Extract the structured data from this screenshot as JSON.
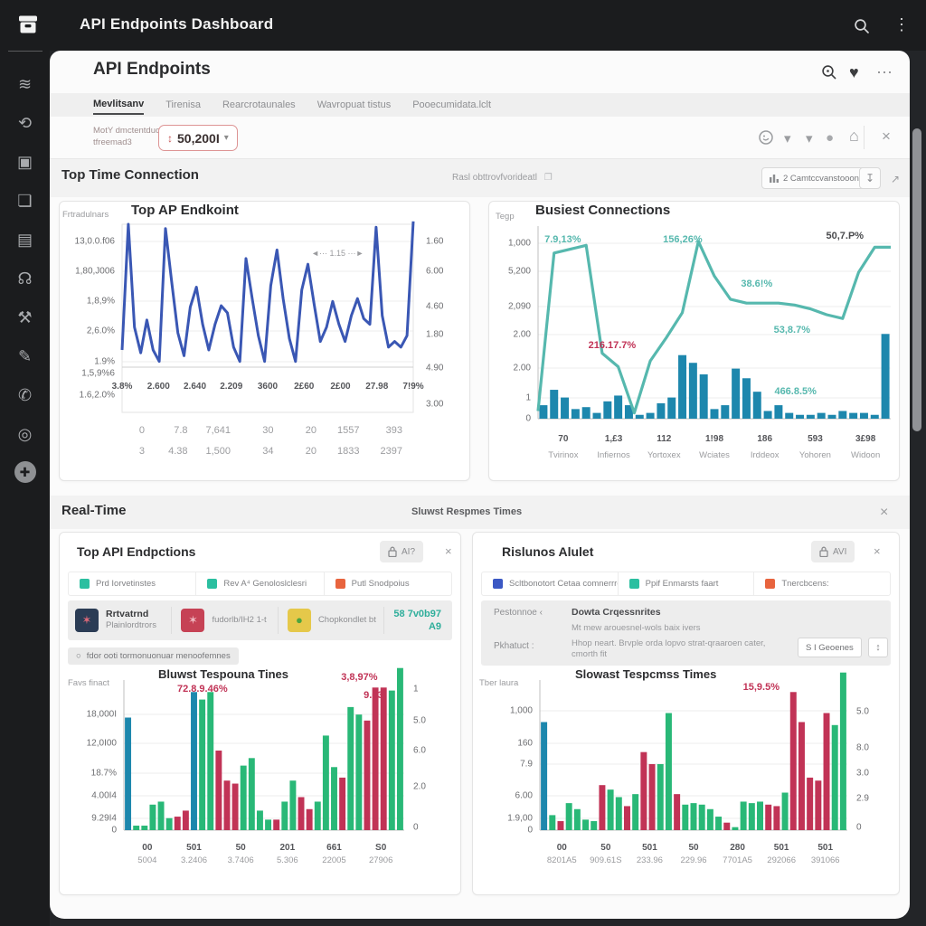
{
  "topbar": {
    "title": "API Endpoints Dashboard"
  },
  "sidebar": {
    "icons": [
      {
        "name": "wifi-icon",
        "glyph": "≋"
      },
      {
        "name": "chat-sync-icon",
        "glyph": "⟲"
      },
      {
        "name": "camera-icon",
        "glyph": "▣"
      },
      {
        "name": "layers-icon",
        "glyph": "❏"
      },
      {
        "name": "photo-icon",
        "glyph": "▤"
      },
      {
        "name": "headset-icon",
        "glyph": "☊"
      },
      {
        "name": "tools-icon",
        "glyph": "⚒"
      },
      {
        "name": "image-edit-icon",
        "glyph": "✎"
      },
      {
        "name": "phone-icon",
        "glyph": "✆"
      },
      {
        "name": "target-icon",
        "glyph": "◎"
      },
      {
        "name": "add-icon",
        "glyph": "✚"
      }
    ]
  },
  "icons": {
    "kebab": "⋮",
    "heart": "♥",
    "ellipsis": "⋯",
    "close": "×",
    "caret_down": "▾",
    "dot": "●",
    "home": "⌂",
    "updown": "↕",
    "download": "↧",
    "expand": "↗",
    "meta_box": "❐",
    "radio": "○",
    "stepper": "↕"
  },
  "card": {
    "title": "API Endpoints"
  },
  "tabs": [
    "Mevlitsanv",
    "Tirenisa",
    "Rearcrotaunales",
    "Wavropuat tistus",
    "Pooecumidata.lclt"
  ],
  "filter": {
    "label_line1": "MotY dmctentduoocs",
    "label_line2": "tfreemad3",
    "value": "50,200I"
  },
  "section1": {
    "title": "Top Time Connection",
    "meta": "Rasl obttrovfvorideatl",
    "button_label": "2 Camtccvanstooon"
  },
  "band2": {
    "title": "Real-Time",
    "center": "Sluwst Respmes Times"
  },
  "panel_bl": {
    "title": "Top API Endpctions",
    "badge": "AI?",
    "legend1": [
      {
        "color": "#2bbfa0",
        "label": "Prd Iorvetinstes"
      },
      {
        "color": "#2bbfa0",
        "label": "Rev A⁴ Genoloslclesri"
      },
      {
        "color": "#e8643e",
        "label": "Putl Snodpoius"
      }
    ],
    "legend2": [
      {
        "tile": "#2b3c55",
        "glyph": "✶",
        "glyph_color": "#e06a7a",
        "line1": "Rrtvatrnd",
        "line2": "Plainlordtrors"
      },
      {
        "tile": "#c64255",
        "glyph": "✶",
        "glyph_color": "#f0b9c1",
        "line1": "",
        "line2": "fudorlb/IH2 1-t"
      },
      {
        "tile": "#e5c84a",
        "glyph": "●",
        "glyph_color": "#4ca53e",
        "line1": "",
        "line2": "Chopkondlet bt"
      }
    ],
    "stat1": "58 7v0b97",
    "stat2": "A9",
    "radio_label": "fdor ooti tormonuonuar menoofemnes"
  },
  "panel_br": {
    "title": "Rislunos Alulet",
    "badge": "AVI",
    "legend1": [
      {
        "color": "#3b58c4",
        "label": "Scltbonotort Cetaa comnerrrdhs"
      },
      {
        "color": "#2bbfa0",
        "label": "Ppif Enmarsts faart"
      },
      {
        "color": "#e8643e",
        "label": "Tnercbcens:"
      }
    ],
    "row1_label": "Pestonnoe ‹",
    "row1_title": "Dowta Crqessnrites",
    "row1_sub": "Mt mew arouesnel-wols baix ivers",
    "row2_label": "Pkhatuct :",
    "row2_text": "Hhop neart. Brvple orda lopvo strat-qraaroen cater, cmorth fit",
    "button_label": "S I Geoenes"
  },
  "chart_data": [
    {
      "type": "line",
      "title": "Top AP Endkoint",
      "axis_label": "Frtradulnars",
      "line_color": "#3a57b4",
      "y_left": [
        "13,0.0.f06",
        "1,80,J006",
        "1,8,9%",
        "2,6.0%",
        "1.9%",
        "1,5,9%6",
        "1.6,2.0%"
      ],
      "y_right": [
        "1.60",
        "6.00",
        "4.60",
        "1.80",
        "4.90",
        "3.00"
      ],
      "x": [
        "3.8%",
        "2.600",
        "2.640",
        "2.209",
        "3600",
        "2£60",
        "2£00",
        "27.98",
        "7!9%"
      ],
      "values": [
        12,
        100,
        28,
        10,
        33,
        12,
        4,
        97,
        60,
        24,
        8,
        42,
        56,
        30,
        12,
        30,
        43,
        38,
        14,
        4,
        76,
        48,
        22,
        4,
        57,
        82,
        48,
        20,
        4,
        54,
        72,
        44,
        18,
        28,
        46,
        30,
        18,
        36,
        48,
        34,
        30,
        98,
        36,
        14,
        18,
        14,
        22,
        102
      ],
      "annotations": [
        {
          "text": "1.15",
          "color": "#9a9b9e",
          "x": 0.74,
          "y": 0.2,
          "style": "dashes"
        }
      ],
      "table": [
        [
          "0",
          "7.8",
          "7,641",
          "30",
          "20",
          "1557",
          "393"
        ],
        [
          "3",
          "4.38",
          "1,500",
          "34",
          "20",
          "1833",
          "2397"
        ]
      ]
    },
    {
      "type": "line-bar",
      "title": "Busiest Connections",
      "axis_label": "Tegp",
      "line_color": "#56b8ae",
      "bar_color": "#1d87ad",
      "y_left": [
        "1,000",
        "5,200",
        "2,090",
        "2.00",
        "2.00",
        "1",
        "0"
      ],
      "x_numbers": [
        "70",
        "1,£3",
        "112",
        "1!98",
        "186",
        "593",
        "3£98"
      ],
      "x_names": [
        "Tvirinox",
        "Infiernos",
        "Yortoxex",
        "Wciates",
        "Irddeox",
        "Yohoren",
        "Widoon"
      ],
      "line": [
        4,
        86,
        88,
        90,
        34,
        27,
        3,
        30,
        42,
        55,
        92,
        74,
        62,
        60,
        60,
        60,
        59,
        57,
        54,
        52,
        76,
        89,
        89
      ],
      "bars": [
        7,
        15,
        11,
        5,
        6,
        3,
        9,
        12,
        7,
        2,
        3,
        8,
        11,
        33,
        29,
        23,
        5,
        7,
        26,
        21,
        14,
        4,
        7,
        3,
        2,
        2,
        3,
        2,
        4,
        3,
        3,
        2,
        44
      ],
      "annotations": [
        {
          "text": "7.9,13%",
          "color": "#56b8ae",
          "x": 0.07,
          "y": 0.07
        },
        {
          "text": "156,26%",
          "color": "#56b8ae",
          "x": 0.41,
          "y": 0.07
        },
        {
          "text": "38.6!%",
          "color": "#56b8ae",
          "x": 0.62,
          "y": 0.3
        },
        {
          "text": "53,8.7%",
          "color": "#56b8ae",
          "x": 0.72,
          "y": 0.54
        },
        {
          "text": "50,7.P%",
          "color": "#4a4b4e",
          "x": 0.87,
          "y": 0.05
        },
        {
          "text": "216.17.7%",
          "color": "#c13356",
          "x": 0.21,
          "y": 0.62
        },
        {
          "text": "466.8.5%",
          "color": "#56b8ae",
          "x": 0.73,
          "y": 0.86
        }
      ]
    },
    {
      "type": "bar",
      "title": "Bluwst Tespouna Tines",
      "axis_label": "Favs finact",
      "palette": {
        "b": "#1d87ad",
        "g": "#29b877",
        "r": "#c13356"
      },
      "y_left": [
        "18,000I",
        "12,0I00",
        "18.7%",
        "4.00I4",
        "9.29I4",
        "0"
      ],
      "y_right": [
        "1",
        "5.0",
        "6.0",
        "2.0",
        "0"
      ],
      "x_row1": [
        "00",
        "501",
        "50",
        "201",
        "661",
        "S0"
      ],
      "x_row2": [
        "5004",
        "3.2406",
        "3.7406",
        "5.306",
        "22005",
        "27906"
      ],
      "colors": [
        "b",
        "g",
        "g",
        "g",
        "g",
        "g",
        "r",
        "r",
        "b",
        "g",
        "g",
        "r",
        "r",
        "r",
        "g",
        "g",
        "g",
        "g",
        "r",
        "g",
        "g",
        "r",
        "r",
        "g",
        "g",
        "g",
        "r",
        "g",
        "g",
        "r",
        "r",
        "r",
        "g",
        "g"
      ],
      "values": [
        75,
        3,
        3,
        17,
        19,
        8,
        9,
        13,
        92,
        87,
        92,
        53,
        33,
        31,
        43,
        48,
        13,
        7,
        7,
        19,
        33,
        22,
        14,
        19,
        63,
        42,
        35,
        82,
        77,
        73,
        95,
        95,
        93,
        108
      ],
      "annotations": [
        {
          "text": "72.8.9.46%",
          "color": "#c13356",
          "x": 0.28,
          "y": 0.06
        },
        {
          "text": "3,8,97%",
          "color": "#c13356",
          "x": 0.84,
          "y": -0.02
        },
        {
          "text": "9.03",
          "color": "#c13356",
          "x": 0.89,
          "y": 0.1
        }
      ]
    },
    {
      "type": "bar",
      "title": "Slowast Tespcmss Times",
      "axis_label": "Tber laura",
      "palette": {
        "b": "#1d87ad",
        "g": "#29b877",
        "r": "#c13356"
      },
      "y_left": [
        "1,000",
        "160",
        "7.9",
        "6.00",
        "1.9,00",
        "0"
      ],
      "y_right": [
        "5.0",
        "8.0",
        "3.0",
        "2.9",
        "0"
      ],
      "x_row1": [
        "00",
        "50",
        "501",
        "50",
        "280",
        "501",
        "501"
      ],
      "x_row2": [
        "8201A5",
        "909.61S",
        "233.96",
        "229.96",
        "7701A5",
        "292066",
        "391066"
      ],
      "colors": [
        "b",
        "g",
        "r",
        "g",
        "g",
        "g",
        "g",
        "r",
        "g",
        "g",
        "r",
        "g",
        "r",
        "r",
        "g",
        "g",
        "r",
        "g",
        "g",
        "g",
        "g",
        "g",
        "r",
        "g",
        "g",
        "g",
        "g",
        "r",
        "r",
        "g",
        "r",
        "r",
        "r",
        "r",
        "r",
        "g",
        "g"
      ],
      "values": [
        72,
        10,
        6,
        18,
        14,
        7,
        6,
        30,
        27,
        22,
        16,
        24,
        52,
        44,
        44,
        78,
        24,
        17,
        18,
        17,
        14,
        9,
        5,
        2,
        19,
        18,
        19,
        17,
        16,
        25,
        92,
        72,
        35,
        33,
        78,
        70,
        105
      ],
      "annotations": [
        {
          "text": "15,9.5%",
          "color": "#c13356",
          "x": 0.72,
          "y": 0.05
        }
      ]
    }
  ]
}
